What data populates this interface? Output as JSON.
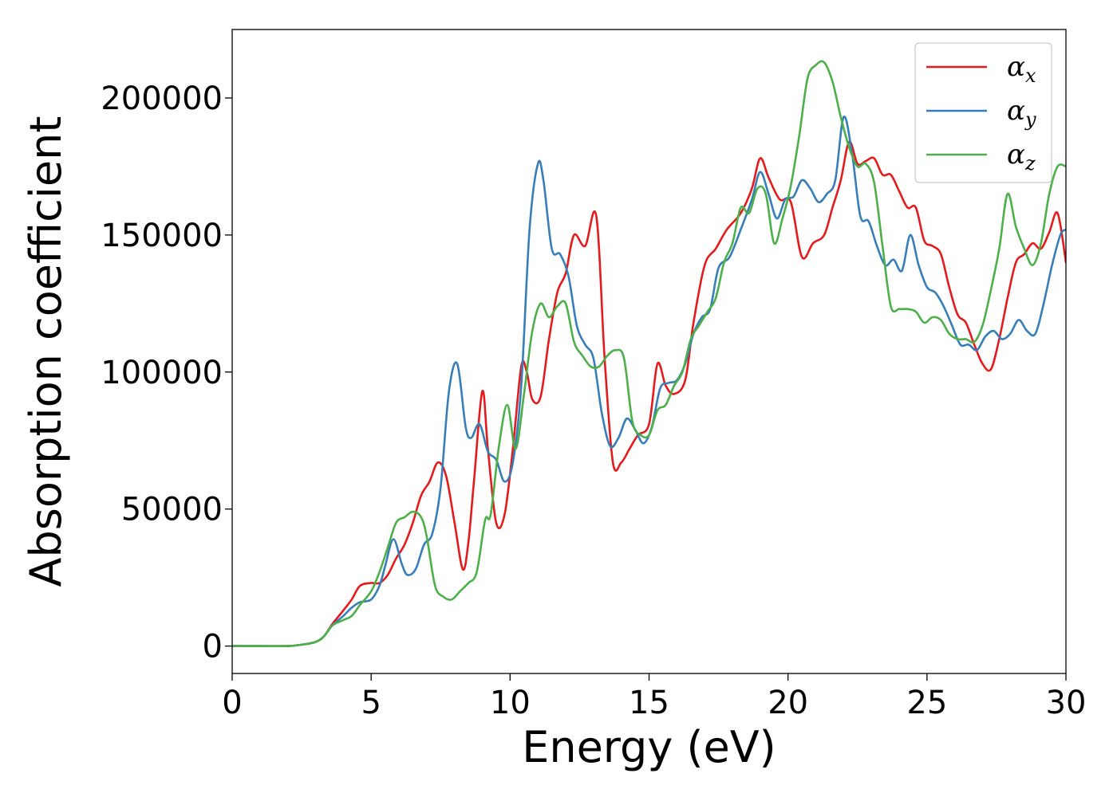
{
  "chart_data": {
    "type": "line",
    "title": "",
    "xlabel": "Energy (eV)",
    "ylabel": "Absorption coefficient",
    "xlim": [
      0,
      30
    ],
    "ylim": [
      -10000,
      225000
    ],
    "xticks": [
      0,
      5,
      10,
      15,
      20,
      25,
      30
    ],
    "xtick_labels": [
      "0",
      "5",
      "10",
      "15",
      "20",
      "25",
      "30"
    ],
    "yticks": [
      0,
      50000,
      100000,
      150000,
      200000
    ],
    "ytick_labels": [
      "0",
      "50000",
      "100000",
      "150000",
      "200000"
    ],
    "grid": false,
    "legend_position": "top-right",
    "series": [
      {
        "name": "α",
        "subscript": "x",
        "color": "#e41a1c",
        "x": [
          0,
          1,
          2,
          2.5,
          3,
          3.3,
          3.6,
          4,
          4.3,
          4.6,
          5,
          5.3,
          5.6,
          5.9,
          6.2,
          6.5,
          6.8,
          7.1,
          7.4,
          7.7,
          8.0,
          8.3,
          8.5,
          8.7,
          9.0,
          9.2,
          9.5,
          9.8,
          10.1,
          10.4,
          10.6,
          10.8,
          11.1,
          11.4,
          11.7,
          12.0,
          12.3,
          12.7,
          13.1,
          13.4,
          13.7,
          14.0,
          14.3,
          14.6,
          15.0,
          15.3,
          15.6,
          15.9,
          16.3,
          16.6,
          17.0,
          17.4,
          17.8,
          18.3,
          18.7,
          19.0,
          19.3,
          19.7,
          20.1,
          20.5,
          20.9,
          21.3,
          21.6,
          21.9,
          22.2,
          22.5,
          22.8,
          23.1,
          23.4,
          23.7,
          24.0,
          24.3,
          24.6,
          24.9,
          25.2,
          25.5,
          25.8,
          26.1,
          26.4,
          26.7,
          27.0,
          27.3,
          27.6,
          27.9,
          28.2,
          28.5,
          28.8,
          29.1,
          29.4,
          29.7,
          30.0
        ],
        "y": [
          0,
          0,
          0,
          500,
          1500,
          3500,
          8000,
          13000,
          17000,
          22000,
          23000,
          23000,
          26000,
          32000,
          37000,
          45000,
          55000,
          60000,
          67000,
          62000,
          45000,
          28000,
          38000,
          60000,
          93000,
          72000,
          45000,
          48000,
          72000,
          102000,
          100000,
          90000,
          91000,
          112000,
          129000,
          136000,
          150000,
          146000,
          157000,
          105000,
          67000,
          67000,
          72000,
          77000,
          81000,
          103000,
          95000,
          92000,
          97000,
          118000,
          139000,
          145000,
          152000,
          158000,
          167000,
          178000,
          171000,
          163000,
          162000,
          142000,
          147000,
          150000,
          160000,
          170000,
          184000,
          176000,
          177000,
          178000,
          172000,
          172000,
          166000,
          160000,
          160000,
          148000,
          146000,
          143000,
          131000,
          121000,
          118000,
          110000,
          103000,
          101000,
          112000,
          127000,
          140000,
          143000,
          147000,
          145000,
          151000,
          158000,
          140000
        ]
      },
      {
        "name": "α",
        "subscript": "y",
        "color": "#377eb8",
        "x": [
          0,
          1,
          2,
          2.5,
          3,
          3.3,
          3.6,
          4,
          4.3,
          4.6,
          5,
          5.3,
          5.5,
          5.8,
          6.1,
          6.3,
          6.6,
          6.9,
          7.2,
          7.5,
          7.8,
          8.1,
          8.4,
          8.6,
          8.9,
          9.2,
          9.5,
          9.8,
          10.1,
          10.4,
          10.7,
          11.0,
          11.2,
          11.5,
          11.8,
          12.1,
          12.4,
          12.7,
          13.0,
          13.3,
          13.6,
          13.9,
          14.2,
          14.5,
          14.8,
          15.1,
          15.4,
          15.7,
          16.0,
          16.3,
          16.6,
          16.9,
          17.2,
          17.5,
          17.9,
          18.3,
          18.7,
          19.0,
          19.3,
          19.6,
          19.9,
          20.2,
          20.5,
          20.8,
          21.1,
          21.4,
          21.7,
          22.0,
          22.3,
          22.6,
          22.9,
          23.2,
          23.5,
          23.8,
          24.1,
          24.4,
          24.7,
          25.0,
          25.3,
          25.6,
          25.9,
          26.2,
          26.5,
          26.8,
          27.1,
          27.4,
          27.7,
          28.0,
          28.3,
          28.6,
          28.9,
          29.2,
          29.5,
          29.8,
          30.0
        ],
        "y": [
          0,
          0,
          0,
          500,
          1500,
          3500,
          7500,
          11000,
          14000,
          16000,
          17000,
          22000,
          29000,
          39000,
          30000,
          26000,
          28000,
          37000,
          41000,
          58000,
          93000,
          103000,
          80000,
          76000,
          81000,
          71000,
          68000,
          60000,
          67000,
          95000,
          152000,
          176000,
          170000,
          145000,
          143000,
          135000,
          117000,
          110000,
          105000,
          85000,
          73000,
          76000,
          83000,
          79000,
          74000,
          80000,
          94000,
          96000,
          97000,
          103000,
          114000,
          120000,
          123000,
          138000,
          142000,
          152000,
          163000,
          173000,
          165000,
          156000,
          163000,
          164000,
          170000,
          167000,
          162000,
          165000,
          170000,
          193000,
          180000,
          157000,
          155000,
          146000,
          139000,
          141000,
          137000,
          150000,
          139000,
          131000,
          129000,
          124000,
          117000,
          110000,
          110000,
          108000,
          113000,
          115000,
          112000,
          114000,
          119000,
          115000,
          114000,
          125000,
          139000,
          150000,
          152000
        ]
      },
      {
        "name": "α",
        "subscript": "z",
        "color": "#4daf4a",
        "x": [
          0,
          1,
          2,
          2.5,
          3,
          3.3,
          3.6,
          4,
          4.3,
          4.6,
          5,
          5.3,
          5.6,
          5.9,
          6.2,
          6.5,
          6.8,
          7.0,
          7.3,
          7.6,
          7.9,
          8.2,
          8.5,
          8.8,
          9.1,
          9.3,
          9.6,
          9.9,
          10.2,
          10.5,
          10.8,
          11.1,
          11.4,
          11.7,
          12.0,
          12.3,
          12.6,
          12.9,
          13.2,
          13.5,
          13.8,
          14.1,
          14.4,
          14.7,
          15.0,
          15.3,
          15.6,
          15.9,
          16.2,
          16.5,
          16.8,
          17.1,
          17.4,
          17.7,
          18.0,
          18.3,
          18.6,
          18.9,
          19.2,
          19.5,
          19.8,
          20.1,
          20.4,
          20.7,
          21.0,
          21.3,
          21.6,
          21.9,
          22.2,
          22.5,
          22.8,
          23.1,
          23.4,
          23.7,
          24.0,
          24.3,
          24.6,
          24.9,
          25.2,
          25.5,
          25.8,
          26.1,
          26.4,
          26.7,
          27.0,
          27.3,
          27.6,
          27.9,
          28.2,
          28.5,
          28.8,
          29.1,
          29.4,
          29.7,
          30.0
        ],
        "y": [
          0,
          0,
          0,
          500,
          1500,
          3500,
          7500,
          9500,
          11000,
          15000,
          20000,
          27000,
          36000,
          45000,
          47000,
          49000,
          47000,
          40000,
          22000,
          18000,
          17000,
          20000,
          23000,
          27000,
          46000,
          48000,
          73000,
          88000,
          72000,
          92000,
          115000,
          125000,
          120000,
          124000,
          125000,
          111000,
          106000,
          102000,
          102000,
          106000,
          108000,
          105000,
          82000,
          77000,
          77000,
          86000,
          88000,
          95000,
          100000,
          112000,
          117000,
          122000,
          127000,
          140000,
          147000,
          160000,
          158000,
          167000,
          165000,
          147000,
          156000,
          168000,
          186000,
          207000,
          212000,
          213000,
          206000,
          193000,
          182000,
          175000,
          176000,
          169000,
          146000,
          124000,
          123000,
          123000,
          122000,
          118000,
          120000,
          119000,
          114000,
          112000,
          112000,
          111000,
          117000,
          130000,
          145000,
          165000,
          153000,
          145000,
          139000,
          147000,
          165000,
          175000,
          175000
        ]
      }
    ]
  }
}
